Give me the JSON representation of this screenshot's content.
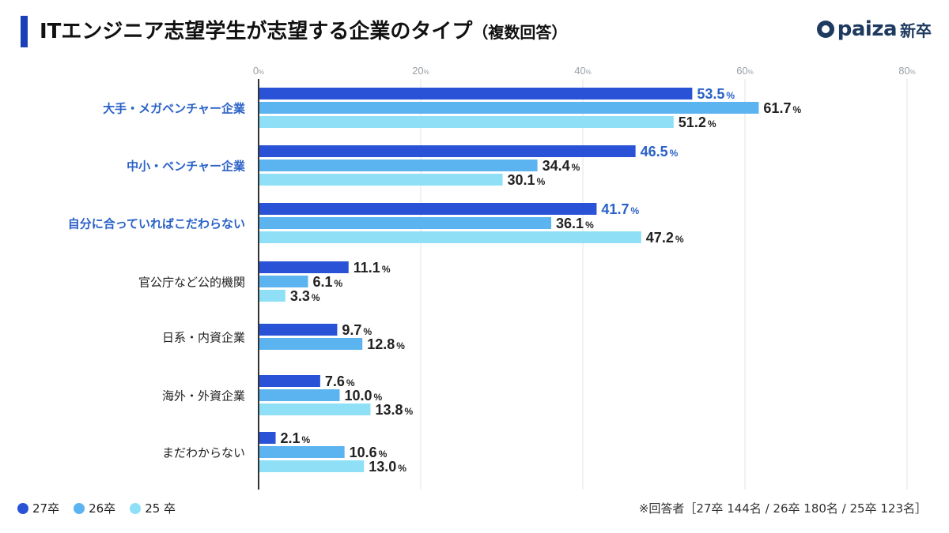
{
  "title": "ITエンジニア志望学生が志望する企業のタイプ",
  "title_suffix": "（複数回答）",
  "logo": {
    "name": "paiza",
    "suffix": "新卒"
  },
  "note": "※回答者［27卒 144名 / 26卒 180名 / 25卒 123名］",
  "colors": {
    "s27": "#2952d6",
    "s26": "#5bb3f0",
    "s25": "#8fe0f7",
    "highlight": "#2b62c8",
    "label": "#222222"
  },
  "chart_data": {
    "type": "bar",
    "orientation": "horizontal",
    "categories": [
      "大手・メガベンチャー企業",
      "中小・ベンチャー企業",
      "自分に合っていればこだわらない",
      "官公庁など公的機関",
      "日系・内資企業",
      "海外・外資企業",
      "まだわからない"
    ],
    "highlighted_categories": [
      0,
      1,
      2
    ],
    "series": [
      {
        "name": "27卒",
        "values": [
          53.5,
          46.5,
          41.7,
          11.1,
          9.7,
          7.6,
          2.1
        ]
      },
      {
        "name": "26卒",
        "values": [
          61.7,
          34.4,
          36.1,
          6.1,
          12.8,
          10.0,
          10.6
        ]
      },
      {
        "name": "25 卒",
        "values": [
          51.2,
          30.1,
          47.2,
          3.3,
          null,
          13.8,
          13.0
        ]
      }
    ],
    "x_ticks": [
      0,
      20,
      40,
      60,
      80
    ],
    "tick_unit": "%",
    "value_unit": "%",
    "xlim": [
      0,
      80
    ],
    "legend_position": "bottom-left",
    "grid": true
  }
}
